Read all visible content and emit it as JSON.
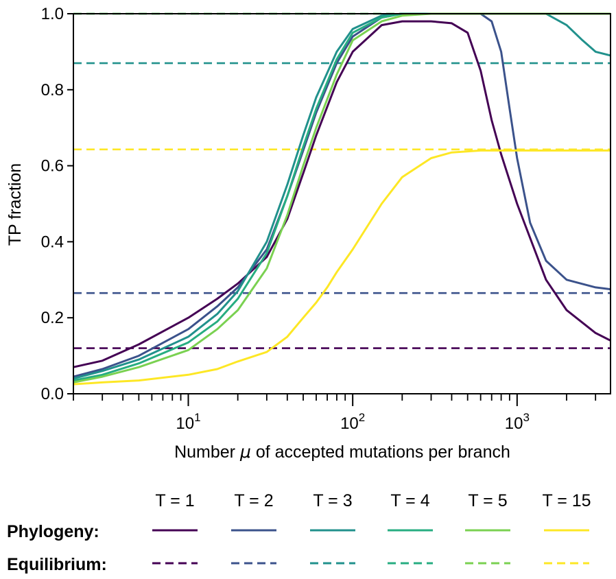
{
  "chart_data": {
    "type": "line",
    "title": "",
    "xlabel_prefix": "Number ",
    "xlabel_symbol": "μ",
    "xlabel_suffix": " of accepted mutations per branch",
    "ylabel": "TP fraction",
    "xscale": "log",
    "xlim": [
      2,
      3700
    ],
    "ylim": [
      0,
      1
    ],
    "grid": false,
    "legend_placement": "bottom",
    "yticks": [
      {
        "value": 0.0,
        "label": "0.0"
      },
      {
        "value": 0.2,
        "label": "0.2"
      },
      {
        "value": 0.4,
        "label": "0.4"
      },
      {
        "value": 0.6,
        "label": "0.6"
      },
      {
        "value": 0.8,
        "label": "0.8"
      },
      {
        "value": 1.0,
        "label": "1.0"
      }
    ],
    "xticks_major": [
      {
        "value": 10,
        "base": "10",
        "exp": "1"
      },
      {
        "value": 100,
        "base": "10",
        "exp": "2"
      },
      {
        "value": 1000,
        "base": "10",
        "exp": "3"
      }
    ],
    "legend": {
      "row_labels": [
        "Phylogeny:",
        "Equilibrium:"
      ],
      "column_labels": [
        "T = 1",
        "T = 2",
        "T = 3",
        "T = 4",
        "T = 5",
        "T = 15"
      ]
    },
    "series": [
      {
        "name": "T = 1",
        "color": "#440154",
        "equilibrium": 0.12,
        "phylogeny": [
          [
            2,
            0.07
          ],
          [
            3,
            0.087
          ],
          [
            5,
            0.13
          ],
          [
            10,
            0.2
          ],
          [
            15,
            0.25
          ],
          [
            20,
            0.29
          ],
          [
            30,
            0.36
          ],
          [
            40,
            0.46
          ],
          [
            50,
            0.58
          ],
          [
            60,
            0.68
          ],
          [
            80,
            0.82
          ],
          [
            100,
            0.9
          ],
          [
            150,
            0.97
          ],
          [
            200,
            0.98
          ],
          [
            300,
            0.98
          ],
          [
            400,
            0.975
          ],
          [
            500,
            0.95
          ],
          [
            600,
            0.85
          ],
          [
            700,
            0.72
          ],
          [
            800,
            0.63
          ],
          [
            1000,
            0.5
          ],
          [
            1500,
            0.3
          ],
          [
            2000,
            0.22
          ],
          [
            3000,
            0.16
          ],
          [
            3700,
            0.14
          ]
        ]
      },
      {
        "name": "T = 2",
        "color": "#3b528b",
        "equilibrium": 0.265,
        "phylogeny": [
          [
            2,
            0.045
          ],
          [
            3,
            0.065
          ],
          [
            5,
            0.1
          ],
          [
            10,
            0.17
          ],
          [
            15,
            0.23
          ],
          [
            20,
            0.28
          ],
          [
            30,
            0.38
          ],
          [
            40,
            0.52
          ],
          [
            50,
            0.64
          ],
          [
            60,
            0.74
          ],
          [
            80,
            0.87
          ],
          [
            100,
            0.94
          ],
          [
            150,
            0.99
          ],
          [
            200,
            1.0
          ],
          [
            400,
            1.0
          ],
          [
            600,
            1.0
          ],
          [
            700,
            0.98
          ],
          [
            800,
            0.9
          ],
          [
            900,
            0.75
          ],
          [
            1000,
            0.62
          ],
          [
            1200,
            0.45
          ],
          [
            1500,
            0.35
          ],
          [
            2000,
            0.3
          ],
          [
            3000,
            0.28
          ],
          [
            3700,
            0.275
          ]
        ]
      },
      {
        "name": "T = 3",
        "color": "#21918c",
        "equilibrium": 0.87,
        "phylogeny": [
          [
            2,
            0.04
          ],
          [
            3,
            0.06
          ],
          [
            5,
            0.09
          ],
          [
            10,
            0.15
          ],
          [
            15,
            0.21
          ],
          [
            20,
            0.27
          ],
          [
            30,
            0.4
          ],
          [
            40,
            0.55
          ],
          [
            50,
            0.68
          ],
          [
            60,
            0.78
          ],
          [
            80,
            0.9
          ],
          [
            100,
            0.96
          ],
          [
            150,
            0.995
          ],
          [
            200,
            1.0
          ],
          [
            1000,
            1.0
          ],
          [
            1500,
            1.0
          ],
          [
            2000,
            0.97
          ],
          [
            2500,
            0.93
          ],
          [
            3000,
            0.9
          ],
          [
            3700,
            0.89
          ]
        ]
      },
      {
        "name": "T = 4",
        "color": "#27ad81",
        "equilibrium": 1.0,
        "phylogeny": [
          [
            2,
            0.035
          ],
          [
            3,
            0.05
          ],
          [
            5,
            0.08
          ],
          [
            10,
            0.135
          ],
          [
            15,
            0.19
          ],
          [
            20,
            0.25
          ],
          [
            30,
            0.37
          ],
          [
            40,
            0.52
          ],
          [
            50,
            0.65
          ],
          [
            60,
            0.75
          ],
          [
            80,
            0.88
          ],
          [
            100,
            0.95
          ],
          [
            150,
            0.99
          ],
          [
            200,
            1.0
          ],
          [
            3700,
            1.0
          ]
        ]
      },
      {
        "name": "T = 5",
        "color": "#7ad151",
        "equilibrium": 1.0,
        "phylogeny": [
          [
            2,
            0.03
          ],
          [
            3,
            0.045
          ],
          [
            5,
            0.07
          ],
          [
            10,
            0.115
          ],
          [
            15,
            0.17
          ],
          [
            20,
            0.22
          ],
          [
            30,
            0.33
          ],
          [
            40,
            0.47
          ],
          [
            50,
            0.6
          ],
          [
            60,
            0.7
          ],
          [
            80,
            0.84
          ],
          [
            100,
            0.93
          ],
          [
            150,
            0.98
          ],
          [
            200,
            0.995
          ],
          [
            300,
            1.0
          ],
          [
            3700,
            1.0
          ]
        ]
      },
      {
        "name": "T = 15",
        "color": "#fde725",
        "equilibrium": 0.643,
        "phylogeny": [
          [
            2,
            0.025
          ],
          [
            3,
            0.03
          ],
          [
            5,
            0.035
          ],
          [
            10,
            0.05
          ],
          [
            15,
            0.065
          ],
          [
            20,
            0.085
          ],
          [
            30,
            0.11
          ],
          [
            40,
            0.15
          ],
          [
            50,
            0.2
          ],
          [
            60,
            0.24
          ],
          [
            70,
            0.28
          ],
          [
            80,
            0.32
          ],
          [
            100,
            0.38
          ],
          [
            150,
            0.5
          ],
          [
            200,
            0.57
          ],
          [
            300,
            0.62
          ],
          [
            400,
            0.635
          ],
          [
            600,
            0.64
          ],
          [
            1000,
            0.64
          ],
          [
            3700,
            0.64
          ]
        ]
      }
    ]
  }
}
